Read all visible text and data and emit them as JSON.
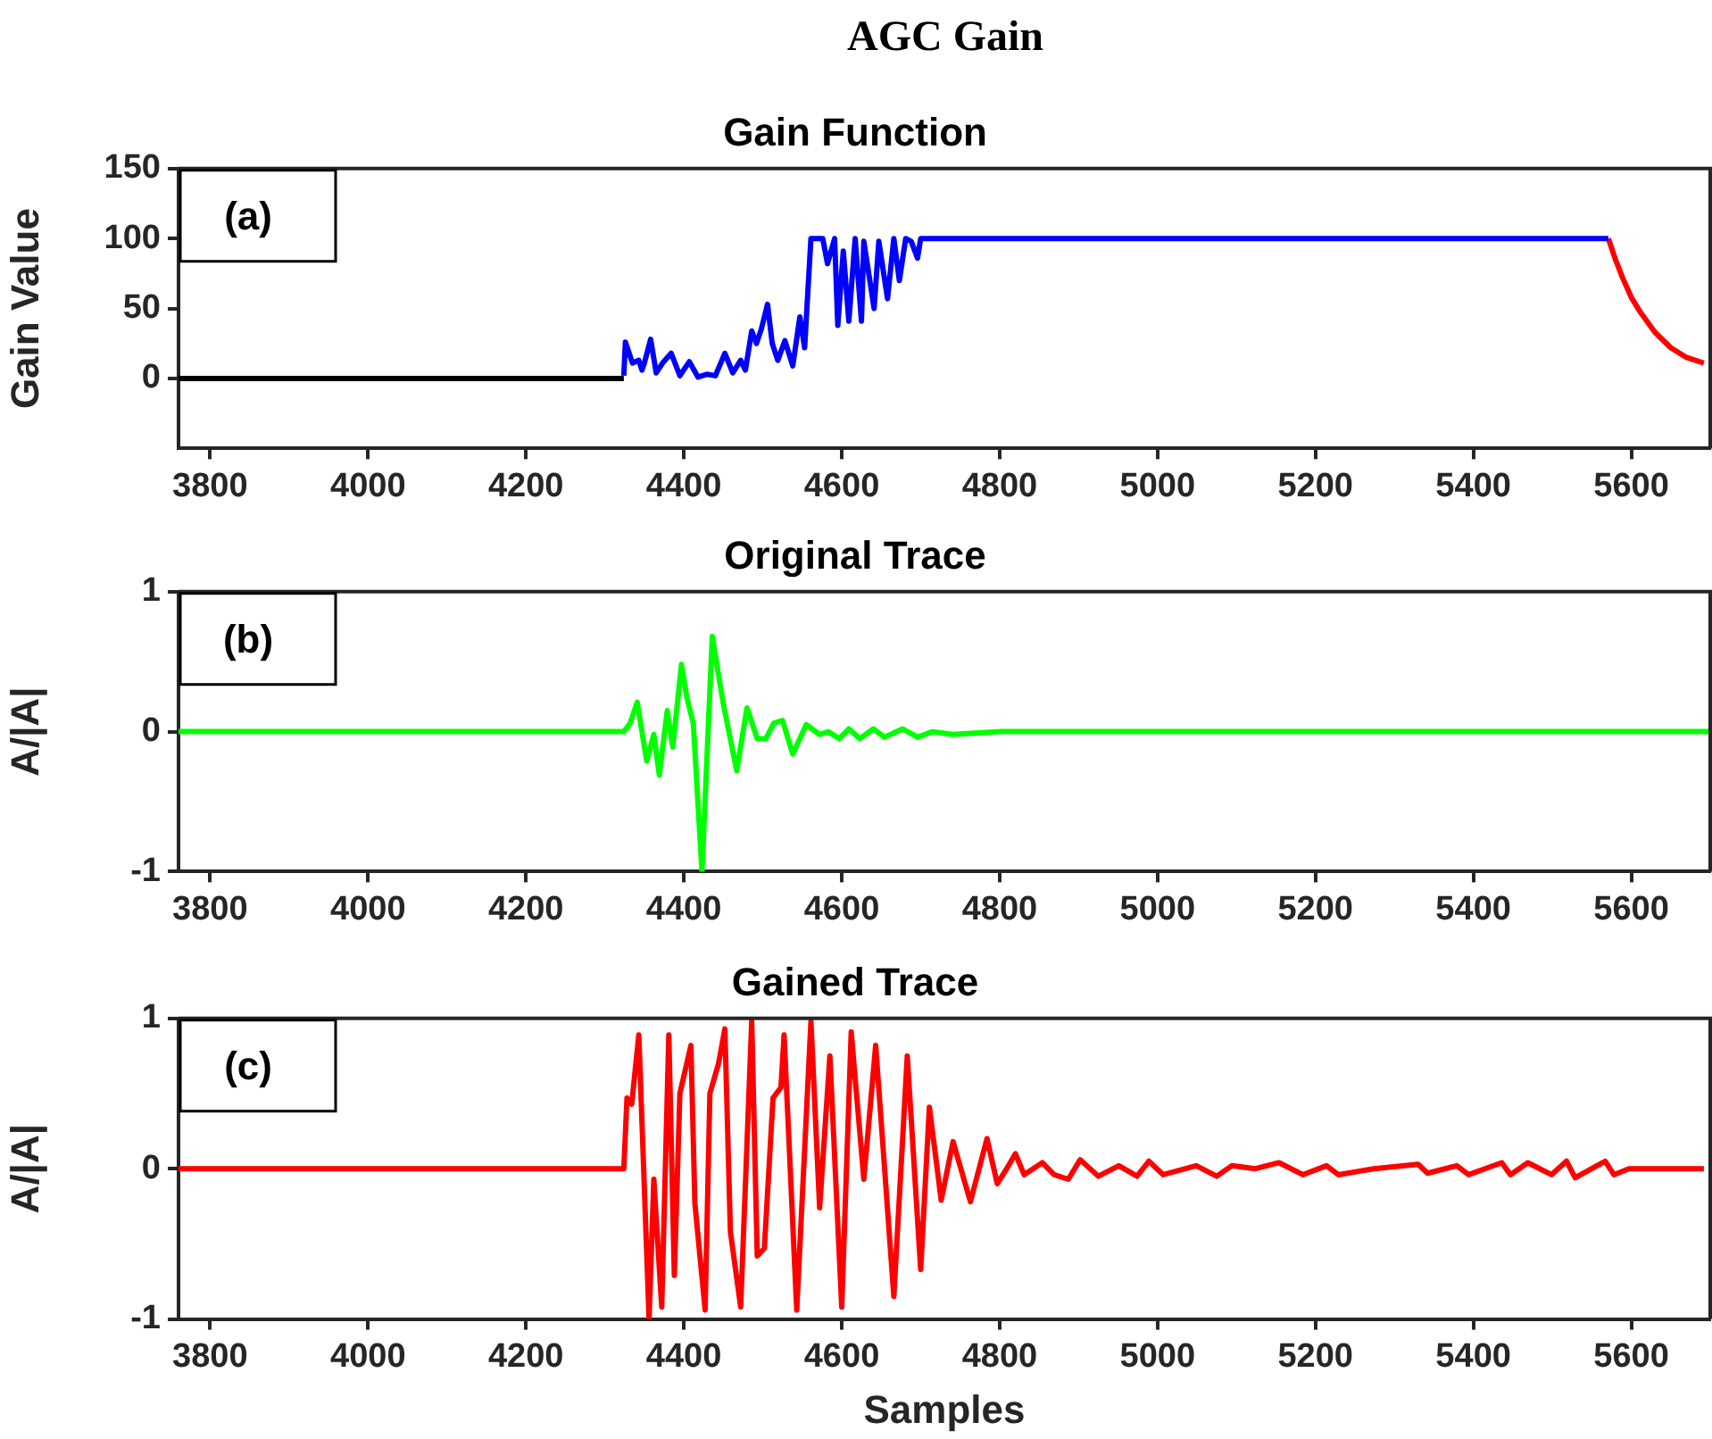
{
  "chart_data": [
    {
      "type": "line",
      "title": "AGC Gain",
      "subtitle": "Gain Function",
      "ylabel": "Gain Value",
      "annotations": [
        "(a)"
      ],
      "xlim": [
        3760,
        5700
      ],
      "xticks": [
        3800,
        4000,
        4200,
        4400,
        4600,
        4800,
        5000,
        5200,
        5400,
        5600
      ],
      "ylim": [
        -50,
        150
      ],
      "yticks": [
        0,
        50,
        100,
        150
      ],
      "grid": false,
      "legend": false,
      "series": [
        {
          "color": "#000000",
          "x": [
            3760,
            4324
          ],
          "values": [
            0,
            0
          ]
        },
        {
          "color": "#0000ff",
          "x": [
            4324,
            4326,
            4335,
            4343,
            4347,
            4350,
            4358,
            4365,
            4373,
            4384,
            4395,
            4407,
            4418,
            4429,
            4440,
            4452,
            4462,
            4472,
            4478,
            4486,
            4492,
            4498,
            4506,
            4512,
            4519,
            4528,
            4538,
            4547,
            4553,
            4561,
            4576,
            4582,
            4591,
            4595,
            4602,
            4609,
            4617,
            4625,
            4628,
            4641,
            4647,
            4658,
            4666,
            4673,
            4681,
            4688,
            4696,
            4700,
            5571
          ],
          "values": [
            2,
            26,
            11,
            13,
            6,
            11,
            28,
            4,
            11,
            18,
            2,
            12,
            1,
            3,
            2,
            18,
            4,
            13,
            6,
            34,
            25,
            35,
            53,
            25,
            13,
            27,
            9,
            44,
            22,
            100,
            100,
            82,
            100,
            38,
            91,
            41,
            100,
            41,
            98,
            50,
            98,
            57,
            100,
            70,
            100,
            98,
            86,
            100,
            100
          ]
        },
        {
          "color": "#ff0000",
          "x": [
            5571,
            5580,
            5589,
            5600,
            5612,
            5630,
            5650,
            5670,
            5692
          ],
          "values": [
            100,
            85,
            72,
            58,
            47,
            33,
            22,
            15,
            11
          ]
        }
      ]
    },
    {
      "type": "line",
      "title": "Original Trace",
      "ylabel": "A/|A|",
      "annotations": [
        "(b)"
      ],
      "xlim": [
        3760,
        5700
      ],
      "xticks": [
        3800,
        4000,
        4200,
        4400,
        4600,
        4800,
        5000,
        5200,
        5400,
        5600
      ],
      "ylim": [
        -1,
        1
      ],
      "yticks": [
        -1,
        0,
        1
      ],
      "grid": false,
      "legend": false,
      "series": [
        {
          "color": "#00ff00",
          "x": [
            3760,
            4324,
            4332,
            4341,
            4353,
            4362,
            4369,
            4379,
            4386,
            4397,
            4404,
            4412,
            4423,
            4436,
            4450,
            4467,
            4480,
            4493,
            4504,
            4514,
            4525,
            4538,
            4555,
            4572,
            4583,
            4597,
            4609,
            4623,
            4640,
            4654,
            4677,
            4696,
            4715,
            4741,
            4801,
            5700
          ],
          "values": [
            0,
            0,
            0.06,
            0.21,
            -0.21,
            -0.02,
            -0.31,
            0.15,
            -0.11,
            0.48,
            0.24,
            0.06,
            -1,
            0.68,
            0.2,
            -0.28,
            0.17,
            -0.05,
            -0.05,
            0.06,
            0.08,
            -0.16,
            0.05,
            -0.02,
            0,
            -0.05,
            0.02,
            -0.05,
            0.02,
            -0.04,
            0.02,
            -0.04,
            0,
            -0.02,
            0,
            0
          ]
        }
      ]
    },
    {
      "type": "line",
      "title": "Gained Trace",
      "xlabel": "Samples",
      "ylabel": "A/|A|",
      "annotations": [
        "(c)"
      ],
      "xlim": [
        3760,
        5700
      ],
      "xticks": [
        3800,
        4000,
        4200,
        4400,
        4600,
        4800,
        5000,
        5200,
        5400,
        5600
      ],
      "ylim": [
        -1,
        1
      ],
      "yticks": [
        -1,
        0,
        1
      ],
      "grid": false,
      "legend": false,
      "series": [
        {
          "color": "#ff0000",
          "x": [
            3760,
            4324,
            4328,
            4334,
            4343,
            4356,
            4362,
            4372,
            4381,
            4388,
            4395,
            4409,
            4414,
            4427,
            4433,
            4444,
            4452,
            4459,
            4472,
            4486,
            4493,
            4502,
            4513,
            4523,
            4527,
            4543,
            4561,
            4572,
            4585,
            4600,
            4612,
            4628,
            4643,
            4666,
            4683,
            4700,
            4711,
            4726,
            4741,
            4763,
            4784,
            4797,
            4809,
            4820,
            4831,
            4854,
            4869,
            4887,
            4902,
            4925,
            4951,
            4974,
            4989,
            5007,
            5049,
            5075,
            5094,
            5124,
            5154,
            5184,
            5214,
            5229,
            5274,
            5330,
            5342,
            5379,
            5394,
            5436,
            5447,
            5469,
            5499,
            5518,
            5529,
            5567,
            5578,
            5597,
            5692
          ],
          "values": [
            0,
            0,
            0.47,
            0.43,
            0.89,
            -1,
            -0.07,
            -0.92,
            0.89,
            -0.71,
            0.5,
            0.82,
            -0.23,
            -0.94,
            0.5,
            0.7,
            0.93,
            -0.42,
            -0.92,
            0.98,
            -0.58,
            -0.53,
            0.47,
            0.54,
            0.89,
            -0.94,
            0.98,
            -0.26,
            0.75,
            -0.92,
            0.91,
            -0.07,
            0.82,
            -0.85,
            0.75,
            -0.67,
            0.41,
            -0.21,
            0.18,
            -0.22,
            0.2,
            -0.1,
            0,
            0.1,
            -0.04,
            0.04,
            -0.04,
            -0.07,
            0.06,
            -0.05,
            0.02,
            -0.05,
            0.05,
            -0.04,
            0.02,
            -0.05,
            0.02,
            0,
            0.04,
            -0.04,
            0.02,
            -0.04,
            0,
            0.03,
            -0.03,
            0.02,
            -0.04,
            0.04,
            -0.04,
            0.04,
            -0.04,
            0.05,
            -0.06,
            0.05,
            -0.04,
            0,
            0
          ]
        }
      ]
    }
  ]
}
